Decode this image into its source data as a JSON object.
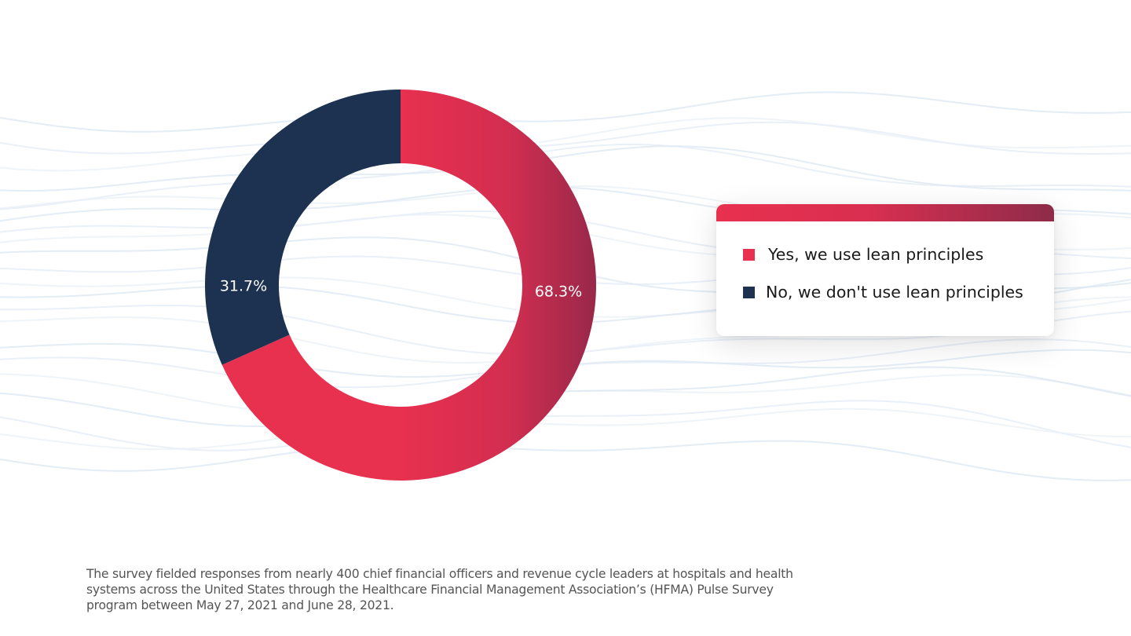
{
  "chart_data": {
    "type": "pie",
    "donut": true,
    "slices": [
      {
        "label": "Yes, we use lean principles",
        "value": 68.3,
        "value_label": "68.3%",
        "color": "#e8304f"
      },
      {
        "label": "No, we don't use lean principles",
        "value": 31.7,
        "value_label": "31.7%",
        "color": "#1d3250"
      }
    ],
    "legend_position": "right"
  },
  "legend": {
    "items": [
      {
        "label": "Yes, we use lean principles",
        "color": "#e8304f"
      },
      {
        "label": "No, we don't use lean principles",
        "color": "#1d3250"
      }
    ]
  },
  "footnote": "The survey fielded responses from nearly 400 chief financial officers and revenue cycle leaders at hospitals and health systems across the United States through the Healthcare Financial Management Association’s (HFMA) Pulse Survey program between May 27, 2021 and June 28, 2021."
}
